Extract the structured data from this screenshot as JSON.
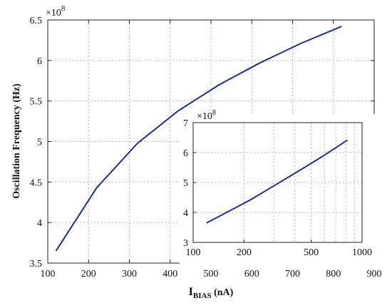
{
  "colors": {
    "line": "#1f2f8a",
    "grid": "#b9b9b9",
    "axis": "#222222"
  },
  "chart_data": [
    {
      "type": "line",
      "xlabel_main": "I",
      "xlabel_sub": "BIAS",
      "xlabel_unit": " (nA)",
      "ylabel": "Oscillation Frequency (Hz)",
      "exponent": "×10",
      "exponent_power": "8",
      "grid": true,
      "xlim": [
        100,
        900
      ],
      "ylim": [
        3.5,
        6.5
      ],
      "xticks": [
        "100",
        "200",
        "300",
        "400",
        "500",
        "600",
        "700",
        "800",
        "900"
      ],
      "yticks": [
        "3.5",
        "4",
        "4.5",
        "5",
        "5.5",
        "6",
        "6.5"
      ],
      "x": [
        120,
        220,
        320,
        420,
        520,
        620,
        720,
        820
      ],
      "y": [
        3.65,
        4.43,
        4.98,
        5.38,
        5.7,
        5.97,
        6.21,
        6.42
      ]
    },
    {
      "type": "line",
      "xscale": "log",
      "grid": true,
      "exponent": "×10",
      "exponent_power": "8",
      "xlim": [
        100,
        1000
      ],
      "ylim": [
        3,
        7
      ],
      "xticks": [
        "100",
        "200",
        "500",
        "1000"
      ],
      "yticks": [
        "3",
        "4",
        "5",
        "6",
        "7"
      ],
      "x": [
        120,
        220,
        320,
        420,
        520,
        620,
        720,
        820
      ],
      "y": [
        3.65,
        4.43,
        4.98,
        5.38,
        5.7,
        5.97,
        6.21,
        6.42
      ]
    }
  ]
}
